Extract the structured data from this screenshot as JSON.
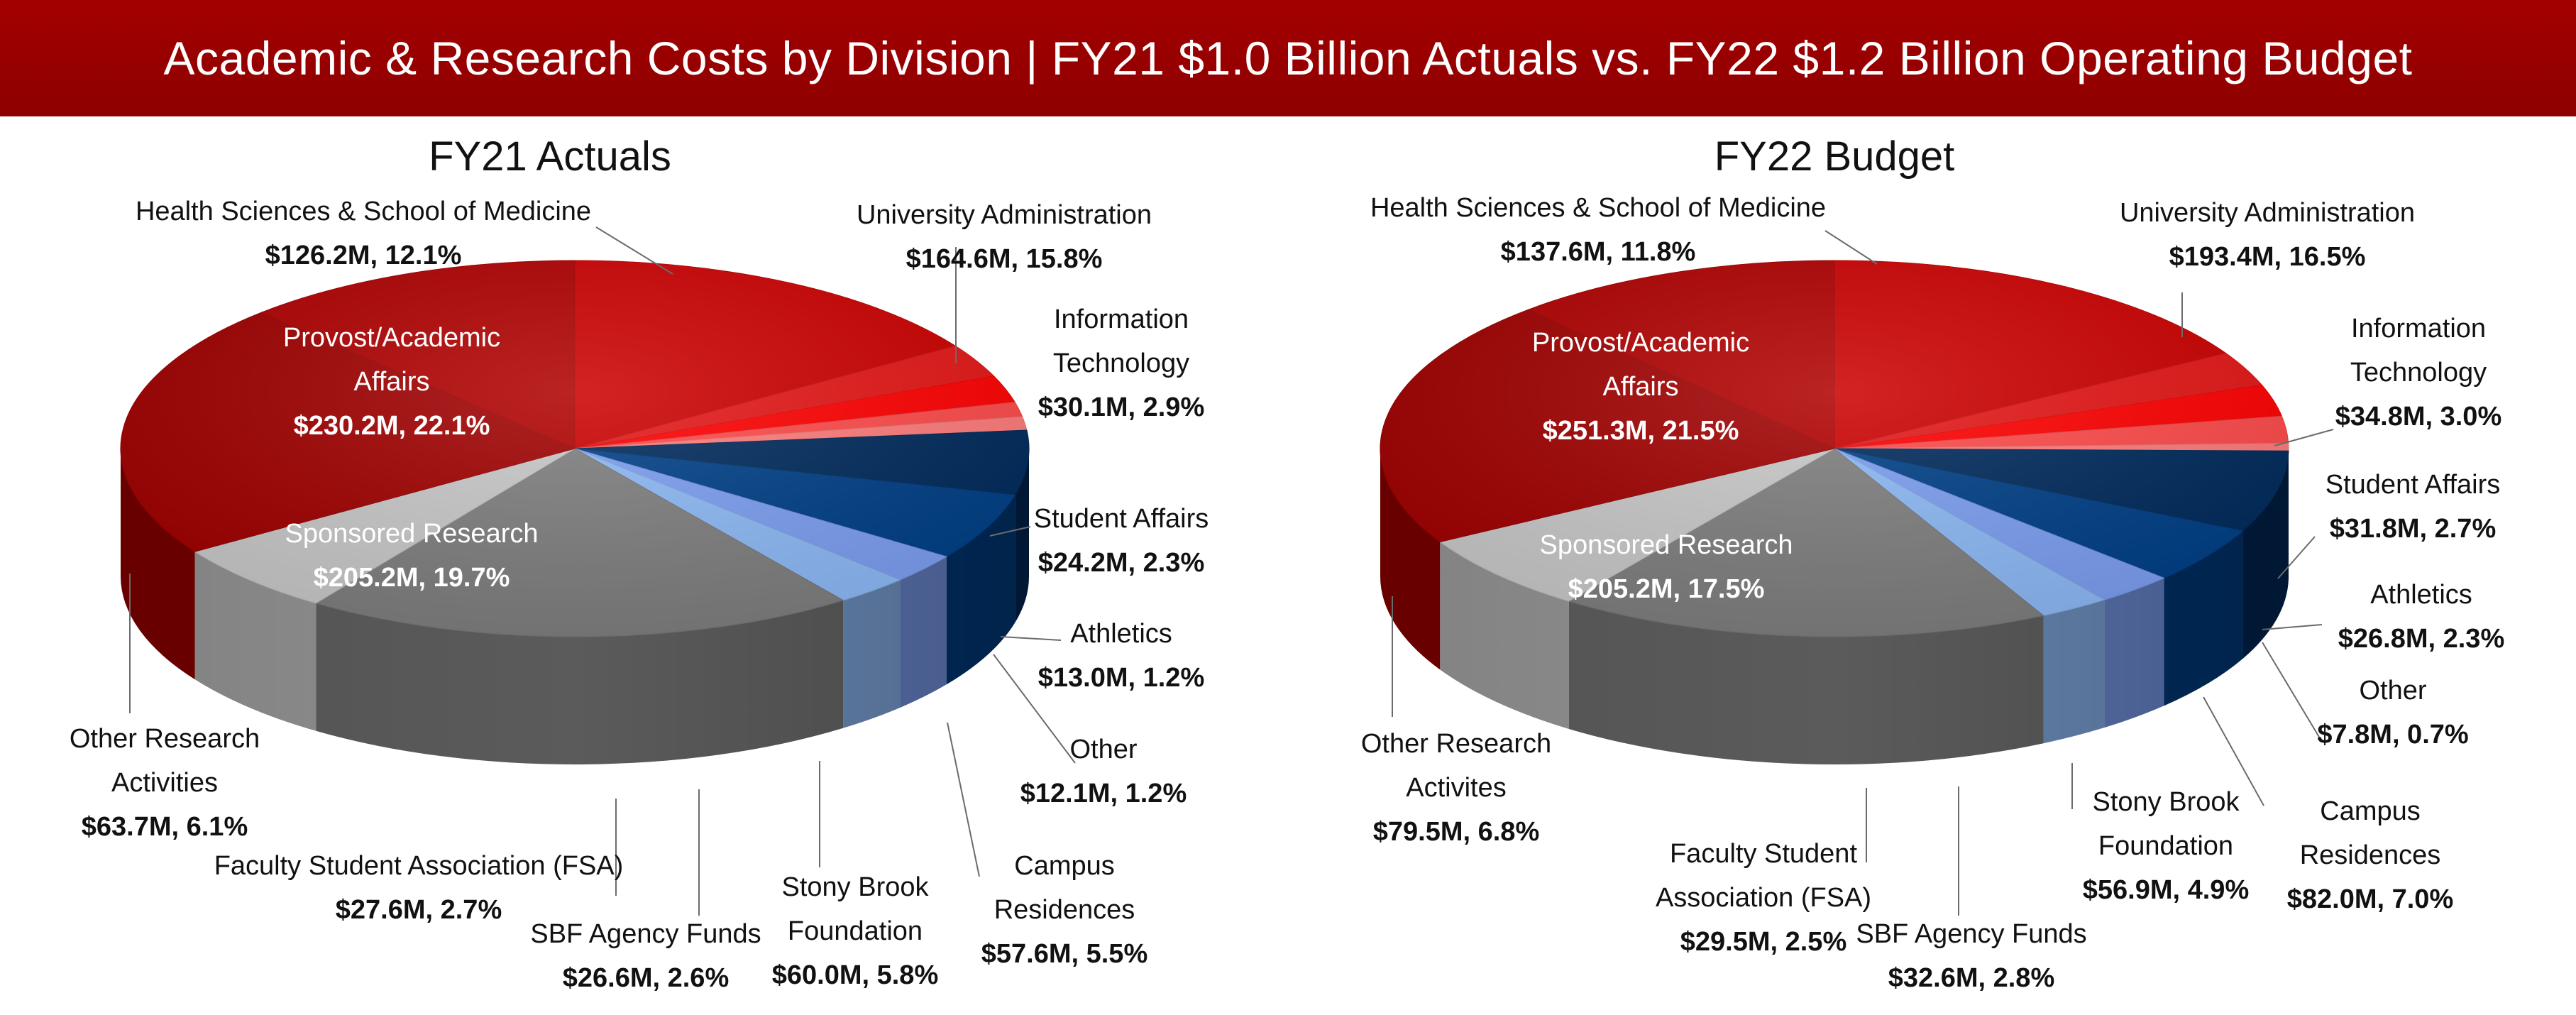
{
  "header": {
    "title": "Academic & Research Costs by Division | FY21 $1.0 Billion Actuals vs. FY22 $1.2 Billion Operating Budget"
  },
  "colors": {
    "banner": "#9b0000",
    "Health Sciences & School of Medicine": "#b00000",
    "University Administration": "#cc0000",
    "Information Technology": "#e51616",
    "Student Affairs": "#ff0000",
    "Athletics": "#ff4a4a",
    "Other": "#ff7b7b",
    "Campus Residences": "#002a5c",
    "Stony Brook Foundation": "#003f86",
    "SBF Agency Funds": "#7c9ef0",
    "Faculty Student Association (FSA)": "#8db9f5",
    "Sponsored Research": "#7f7f7f",
    "Other Research Activities": "#c8c8c8",
    "Provost/Academic Affairs": "#a00000"
  },
  "chart_data": [
    {
      "type": "pie",
      "title": "FY21 Actuals",
      "slices": [
        {
          "label": "University Administration",
          "value": 164.6,
          "value_text": "$164.6M, 15.8%",
          "label_lines": [
            "University Administration"
          ]
        },
        {
          "label": "Information Technology",
          "value": 30.1,
          "value_text": "$30.1M, 2.9%",
          "label_lines": [
            "Information",
            "Technology"
          ]
        },
        {
          "label": "Student Affairs",
          "value": 24.2,
          "value_text": "$24.2M, 2.3%",
          "label_lines": [
            "Student Affairs"
          ]
        },
        {
          "label": "Athletics",
          "value": 13.0,
          "value_text": "$13.0M, 1.2%",
          "label_lines": [
            "Athletics"
          ]
        },
        {
          "label": "Other",
          "value": 12.1,
          "value_text": "$12.1M, 1.2%",
          "label_lines": [
            "Other"
          ]
        },
        {
          "label": "Campus Residences",
          "value": 57.6,
          "value_text": "$57.6M, 5.5%",
          "label_lines": [
            "Campus",
            "Residences"
          ]
        },
        {
          "label": "Stony Brook Foundation",
          "value": 60.0,
          "value_text": "$60.0M, 5.8%",
          "label_lines": [
            "Stony Brook",
            "Foundation"
          ]
        },
        {
          "label": "SBF Agency Funds",
          "value": 26.6,
          "value_text": "$26.6M, 2.6%",
          "label_lines": [
            "SBF Agency Funds"
          ]
        },
        {
          "label": "Faculty Student Association (FSA)",
          "value": 27.6,
          "value_text": "$27.6M, 2.7%",
          "label_lines": [
            "Faculty Student Association (FSA)"
          ]
        },
        {
          "label": "Sponsored Research",
          "value": 205.2,
          "value_text": "$205.2M, 19.7%",
          "label_lines": [
            "Sponsored Research"
          ]
        },
        {
          "label": "Other Research Activities",
          "value": 63.7,
          "value_text": "$63.7M, 6.1%",
          "label_lines": [
            "Other Research",
            "Activities"
          ]
        },
        {
          "label": "Provost/Academic Affairs",
          "value": 230.2,
          "value_text": "$230.2M, 22.1%",
          "label_lines": [
            "Provost/Academic",
            "Affairs"
          ]
        },
        {
          "label": "Health Sciences & School of Medicine",
          "value": 126.2,
          "value_text": "$126.2M, 12.1%",
          "label_lines": [
            "Health Sciences & School of Medicine"
          ]
        }
      ]
    },
    {
      "type": "pie",
      "title": "FY22 Budget",
      "slices": [
        {
          "label": "University Administration",
          "value": 193.4,
          "value_text": "$193.4M, 16.5%",
          "label_lines": [
            "University Administration"
          ]
        },
        {
          "label": "Information Technology",
          "value": 34.8,
          "value_text": "$34.8M, 3.0%",
          "label_lines": [
            "Information",
            "Technology"
          ]
        },
        {
          "label": "Student Affairs",
          "value": 31.8,
          "value_text": "$31.8M, 2.7%",
          "label_lines": [
            "Student Affairs"
          ]
        },
        {
          "label": "Athletics",
          "value": 26.8,
          "value_text": "$26.8M, 2.3%",
          "label_lines": [
            "Athletics"
          ]
        },
        {
          "label": "Other",
          "value": 7.8,
          "value_text": "$7.8M, 0.7%",
          "label_lines": [
            "Other"
          ]
        },
        {
          "label": "Campus Residences",
          "value": 82.0,
          "value_text": "$82.0M, 7.0%",
          "label_lines": [
            "Campus",
            "Residences"
          ]
        },
        {
          "label": "Stony Brook Foundation",
          "value": 56.9,
          "value_text": "$56.9M, 4.9%",
          "label_lines": [
            "Stony Brook",
            "Foundation"
          ]
        },
        {
          "label": "SBF Agency Funds",
          "value": 32.6,
          "value_text": "$32.6M, 2.8%",
          "label_lines": [
            "SBF Agency Funds"
          ]
        },
        {
          "label": "Faculty Student Association (FSA)",
          "value": 29.5,
          "value_text": "$29.5M, 2.5%",
          "label_lines": [
            "Faculty Student",
            "Association (FSA)"
          ]
        },
        {
          "label": "Sponsored Research",
          "value": 205.2,
          "value_text": "$205.2M, 17.5%",
          "label_lines": [
            "Sponsored Research"
          ]
        },
        {
          "label": "Other Research Activities",
          "value": 79.5,
          "value_text": "$79.5M, 6.8%",
          "label_lines": [
            "Other Research",
            "Activites"
          ]
        },
        {
          "label": "Provost/Academic Affairs",
          "value": 251.3,
          "value_text": "$251.3M, 21.5%",
          "label_lines": [
            "Provost/Academic",
            "Affairs"
          ]
        },
        {
          "label": "Health Sciences & School of Medicine",
          "value": 137.6,
          "value_text": "$137.6M, 11.8%",
          "label_lines": [
            "Health Sciences & School of Medicine"
          ]
        }
      ]
    }
  ]
}
